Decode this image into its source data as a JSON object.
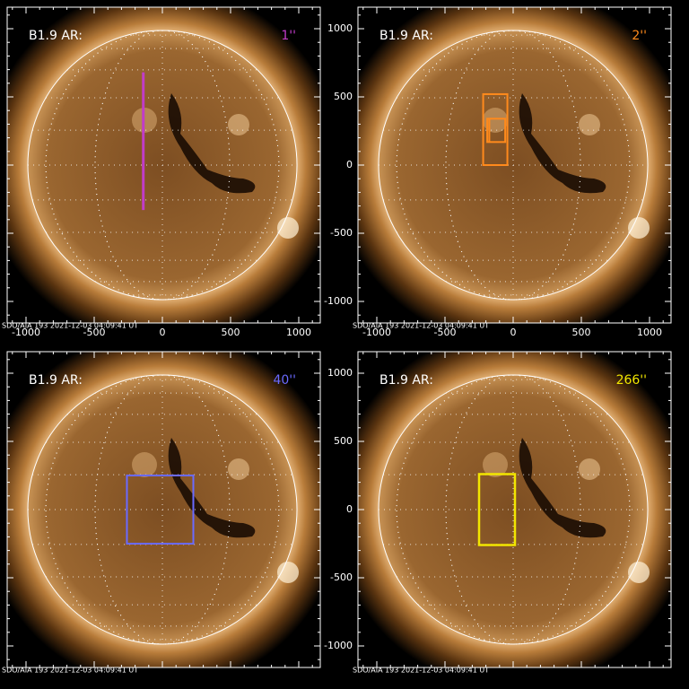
{
  "panels": [
    {
      "label": "B1.9 AR:",
      "tag": "1''",
      "tag_color": "#c13cc8",
      "footer": "SDO/AIA 193  2021-12-03 04:09:41 UT",
      "xticks": [
        -1000,
        -500,
        0,
        500,
        1000
      ]
    },
    {
      "label": "B1.9 AR:",
      "tag": "2''",
      "tag_color": "#ff8a1c",
      "footer": "SDO/AIA 193  2021-12-03 04:09:41 UT",
      "xticks": [
        -1000,
        -500,
        0,
        500,
        1000
      ],
      "yticks": [
        1000,
        500,
        0,
        -500,
        -1000
      ]
    },
    {
      "label": "B1.9 AR:",
      "tag": "40''",
      "tag_color": "#6a6aff",
      "footer": "SDO/AIA 193  2021-12-03 04:09:41 UT"
    },
    {
      "label": "B1.9 AR:",
      "tag": "266''",
      "tag_color": "#f2e600",
      "footer": "SDO/AIA 193  2021-12-03 04:09:41 UT",
      "yticks": [
        1000,
        500,
        0,
        -500,
        -1000
      ]
    }
  ]
}
